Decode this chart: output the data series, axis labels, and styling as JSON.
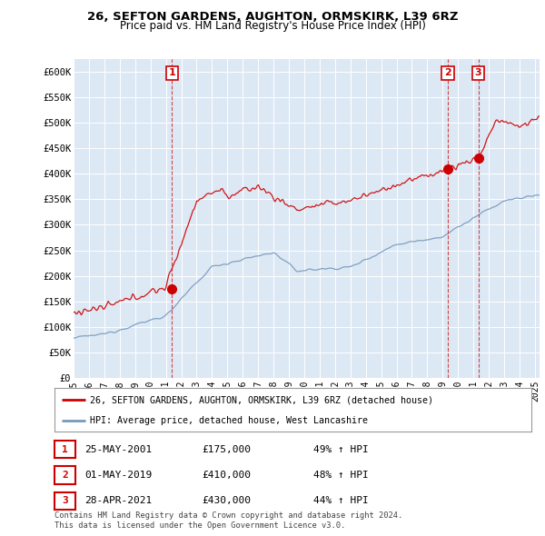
{
  "title1": "26, SEFTON GARDENS, AUGHTON, ORMSKIRK, L39 6RZ",
  "title2": "Price paid vs. HM Land Registry's House Price Index (HPI)",
  "ylabel_ticks": [
    "£0",
    "£50K",
    "£100K",
    "£150K",
    "£200K",
    "£250K",
    "£300K",
    "£350K",
    "£400K",
    "£450K",
    "£500K",
    "£550K",
    "£600K"
  ],
  "ytick_values": [
    0,
    50000,
    100000,
    150000,
    200000,
    250000,
    300000,
    350000,
    400000,
    450000,
    500000,
    550000,
    600000
  ],
  "ylim": [
    0,
    625000
  ],
  "xlim_start": 1995.0,
  "xlim_end": 2025.3,
  "sale_dates": [
    2001.39,
    2019.33,
    2021.32
  ],
  "sale_prices": [
    175000,
    410000,
    430000
  ],
  "sale_labels": [
    "1",
    "2",
    "3"
  ],
  "red_line_color": "#cc0000",
  "blue_line_color": "#7799bb",
  "vline_color": "#cc0000",
  "legend_label_red": "26, SEFTON GARDENS, AUGHTON, ORMSKIRK, L39 6RZ (detached house)",
  "legend_label_blue": "HPI: Average price, detached house, West Lancashire",
  "table_data": [
    [
      "1",
      "25-MAY-2001",
      "£175,000",
      "49% ↑ HPI"
    ],
    [
      "2",
      "01-MAY-2019",
      "£410,000",
      "48% ↑ HPI"
    ],
    [
      "3",
      "28-APR-2021",
      "£430,000",
      "44% ↑ HPI"
    ]
  ],
  "footnote1": "Contains HM Land Registry data © Crown copyright and database right 2024.",
  "footnote2": "This data is licensed under the Open Government Licence v3.0.",
  "background_color": "#ffffff",
  "plot_bg_color": "#dde8f5"
}
